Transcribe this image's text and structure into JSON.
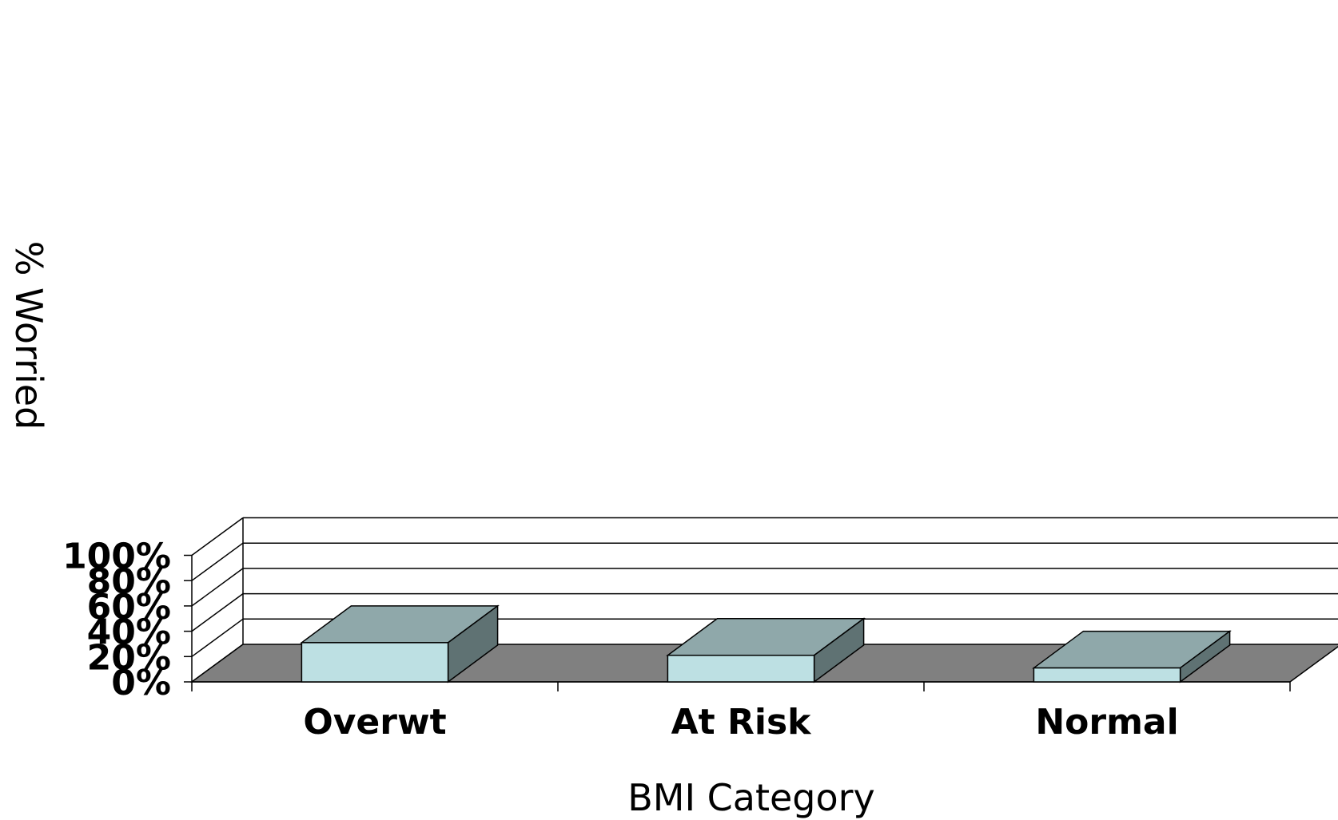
{
  "chart_data": {
    "type": "bar",
    "style": "3d",
    "categories": [
      "Overwt",
      "At Risk",
      "Normal"
    ],
    "series": [
      {
        "values": [
          31,
          21,
          11
        ]
      }
    ],
    "xlabel": "BMI Category",
    "ylabel": "% Worried",
    "ylim": [
      0,
      100
    ],
    "yticks": [
      0,
      20,
      40,
      60,
      80,
      100
    ],
    "ytick_labels": [
      "0%",
      "20%",
      "40%",
      "60%",
      "80%",
      "100%"
    ],
    "grid": true,
    "legend": "none",
    "colors": {
      "bar_front": "#bde0e3",
      "bar_top": "#8fa8aa",
      "bar_side": "#5f7273",
      "floor": "#808080"
    }
  }
}
